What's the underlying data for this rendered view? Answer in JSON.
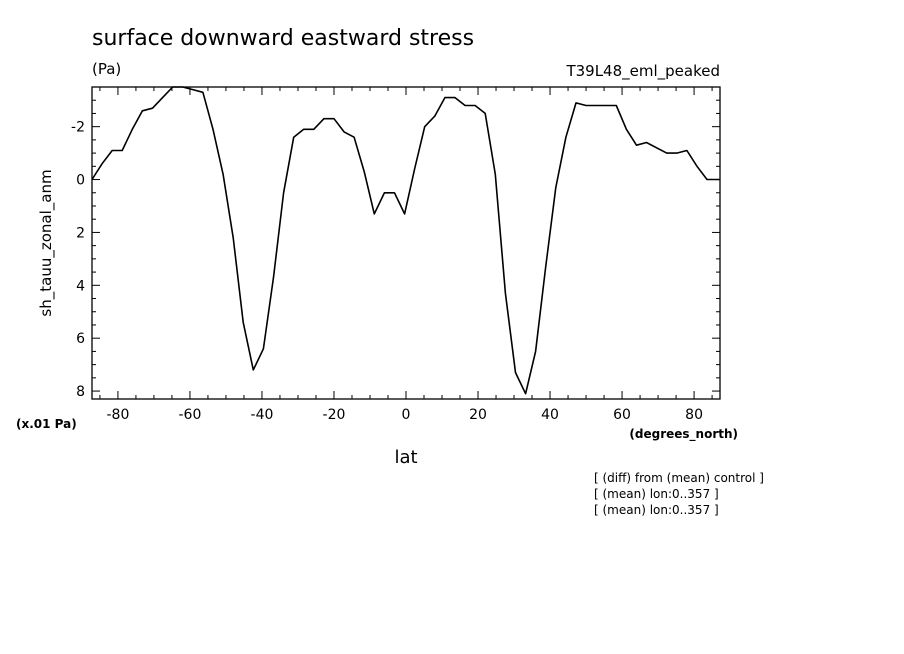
{
  "chart_data": {
    "type": "line",
    "title": "surface downward eastward stress",
    "units": "(Pa)",
    "run_label": "T39L48_eml_peaked",
    "ylabel": "sh_tauu_zonal_anm",
    "xlabel": "lat",
    "x_unit_label": "(degrees_north)",
    "y_scale_label": "(x.01 Pa)",
    "notes": [
      "[ (diff) from (mean) control ]",
      "[ (mean) lon:0..357 ]",
      "[ (mean) lon:0..357 ]"
    ],
    "xlim": [
      -87.2,
      87.2
    ],
    "ylim": [
      8.3,
      -3.5
    ],
    "y_inverted": true,
    "x_ticks": [
      -80,
      -60,
      -40,
      -20,
      0,
      20,
      40,
      60,
      80
    ],
    "x_tick_labels": [
      "-80",
      "-60",
      "-40",
      "-20",
      "0",
      "20",
      "40",
      "60",
      "80"
    ],
    "y_ticks": [
      -2,
      0,
      2,
      4,
      6,
      8
    ],
    "y_tick_labels": [
      "-2",
      "0",
      "2",
      "4",
      "6",
      "8"
    ],
    "grid": false,
    "series": [
      {
        "x": [
          -87.2,
          -84.4,
          -81.6,
          -78.8,
          -76.0,
          -73.2,
          -70.4,
          -67.6,
          -64.8,
          -62.0,
          -59.2,
          -56.4,
          -53.6,
          -50.8,
          -48.0,
          -45.2,
          -42.4,
          -39.6,
          -36.8,
          -34.0,
          -31.2,
          -28.4,
          -25.6,
          -22.8,
          -20.0,
          -17.2,
          -14.4,
          -11.6,
          -8.8,
          -6.0,
          -3.2,
          -0.4,
          2.4,
          5.2,
          8.0,
          10.8,
          13.6,
          16.4,
          19.2,
          22.0,
          24.8,
          27.6,
          30.4,
          33.2,
          36.0,
          38.8,
          41.6,
          44.4,
          47.2,
          50.0,
          52.8,
          55.6,
          58.4,
          61.2,
          64.0,
          66.8,
          69.6,
          72.4,
          75.2,
          78.0,
          80.8,
          83.6,
          86.4,
          87.2
        ],
        "y": [
          0.0,
          -0.6,
          -1.1,
          -1.1,
          -1.9,
          -2.6,
          -2.7,
          -3.1,
          -3.5,
          -3.5,
          -3.4,
          -3.3,
          -1.9,
          -0.2,
          2.2,
          5.4,
          7.2,
          6.4,
          3.7,
          0.5,
          -1.6,
          -1.9,
          -1.9,
          -2.3,
          -2.3,
          -1.8,
          -1.6,
          -0.3,
          1.3,
          0.5,
          0.5,
          1.3,
          -0.4,
          -2.0,
          -2.4,
          -3.1,
          -3.1,
          -2.8,
          -2.8,
          -2.5,
          -0.2,
          4.3,
          7.3,
          8.1,
          6.5,
          3.3,
          0.3,
          -1.6,
          -2.9,
          -2.8,
          -2.8,
          -2.8,
          -2.8,
          -1.9,
          -1.3,
          -1.4,
          -1.2,
          -1.0,
          -1.0,
          -1.1,
          -0.5,
          0.0,
          0.0,
          0.0
        ]
      }
    ]
  }
}
